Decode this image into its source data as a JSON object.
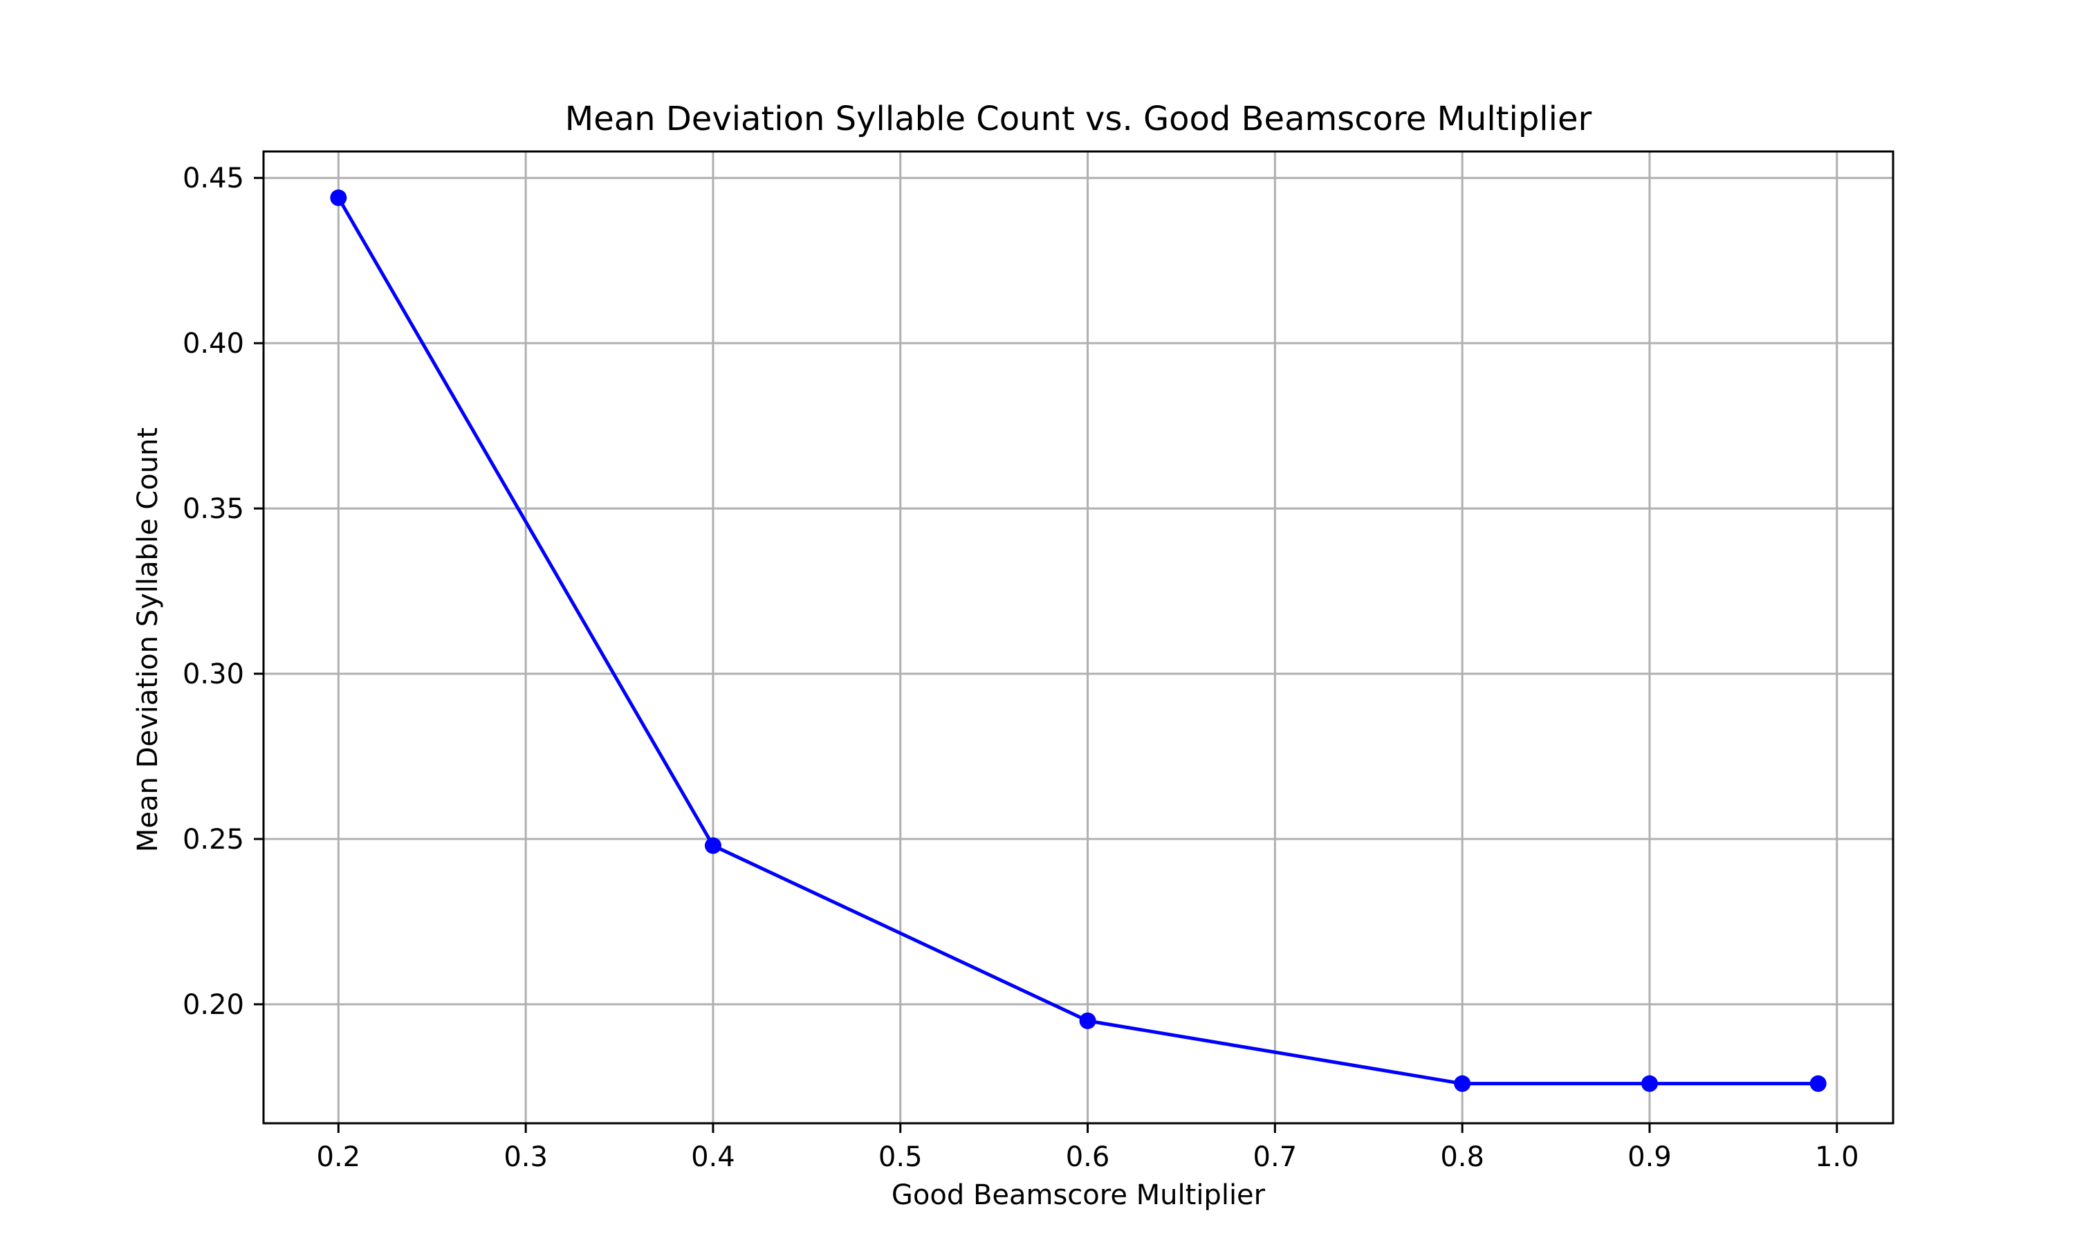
{
  "chart_data": {
    "type": "line",
    "title": "Mean Deviation Syllable Count vs. Good Beamscore Multiplier",
    "xlabel": "Good Beamscore Multiplier",
    "ylabel": "Mean Deviation Syllable Count",
    "x": [
      0.2,
      0.4,
      0.6,
      0.8,
      0.9,
      0.99
    ],
    "series": [
      {
        "values": [
          0.444,
          0.248,
          0.195,
          0.176,
          0.176,
          0.176
        ],
        "color": "#0000ff",
        "marker": "circle"
      }
    ],
    "xlim": [
      0.16,
      1.03
    ],
    "ylim": [
      0.164,
      0.458
    ],
    "xticks": [
      0.2,
      0.3,
      0.4,
      0.5,
      0.6,
      0.7,
      0.8,
      0.9,
      1.0
    ],
    "xtick_labels": [
      "0.2",
      "0.3",
      "0.4",
      "0.5",
      "0.6",
      "0.7",
      "0.8",
      "0.9",
      "1.0"
    ],
    "yticks": [
      0.2,
      0.25,
      0.3,
      0.35,
      0.4,
      0.45
    ],
    "ytick_labels": [
      "0.20",
      "0.25",
      "0.30",
      "0.35",
      "0.40",
      "0.45"
    ],
    "grid": true,
    "legend": "none"
  }
}
